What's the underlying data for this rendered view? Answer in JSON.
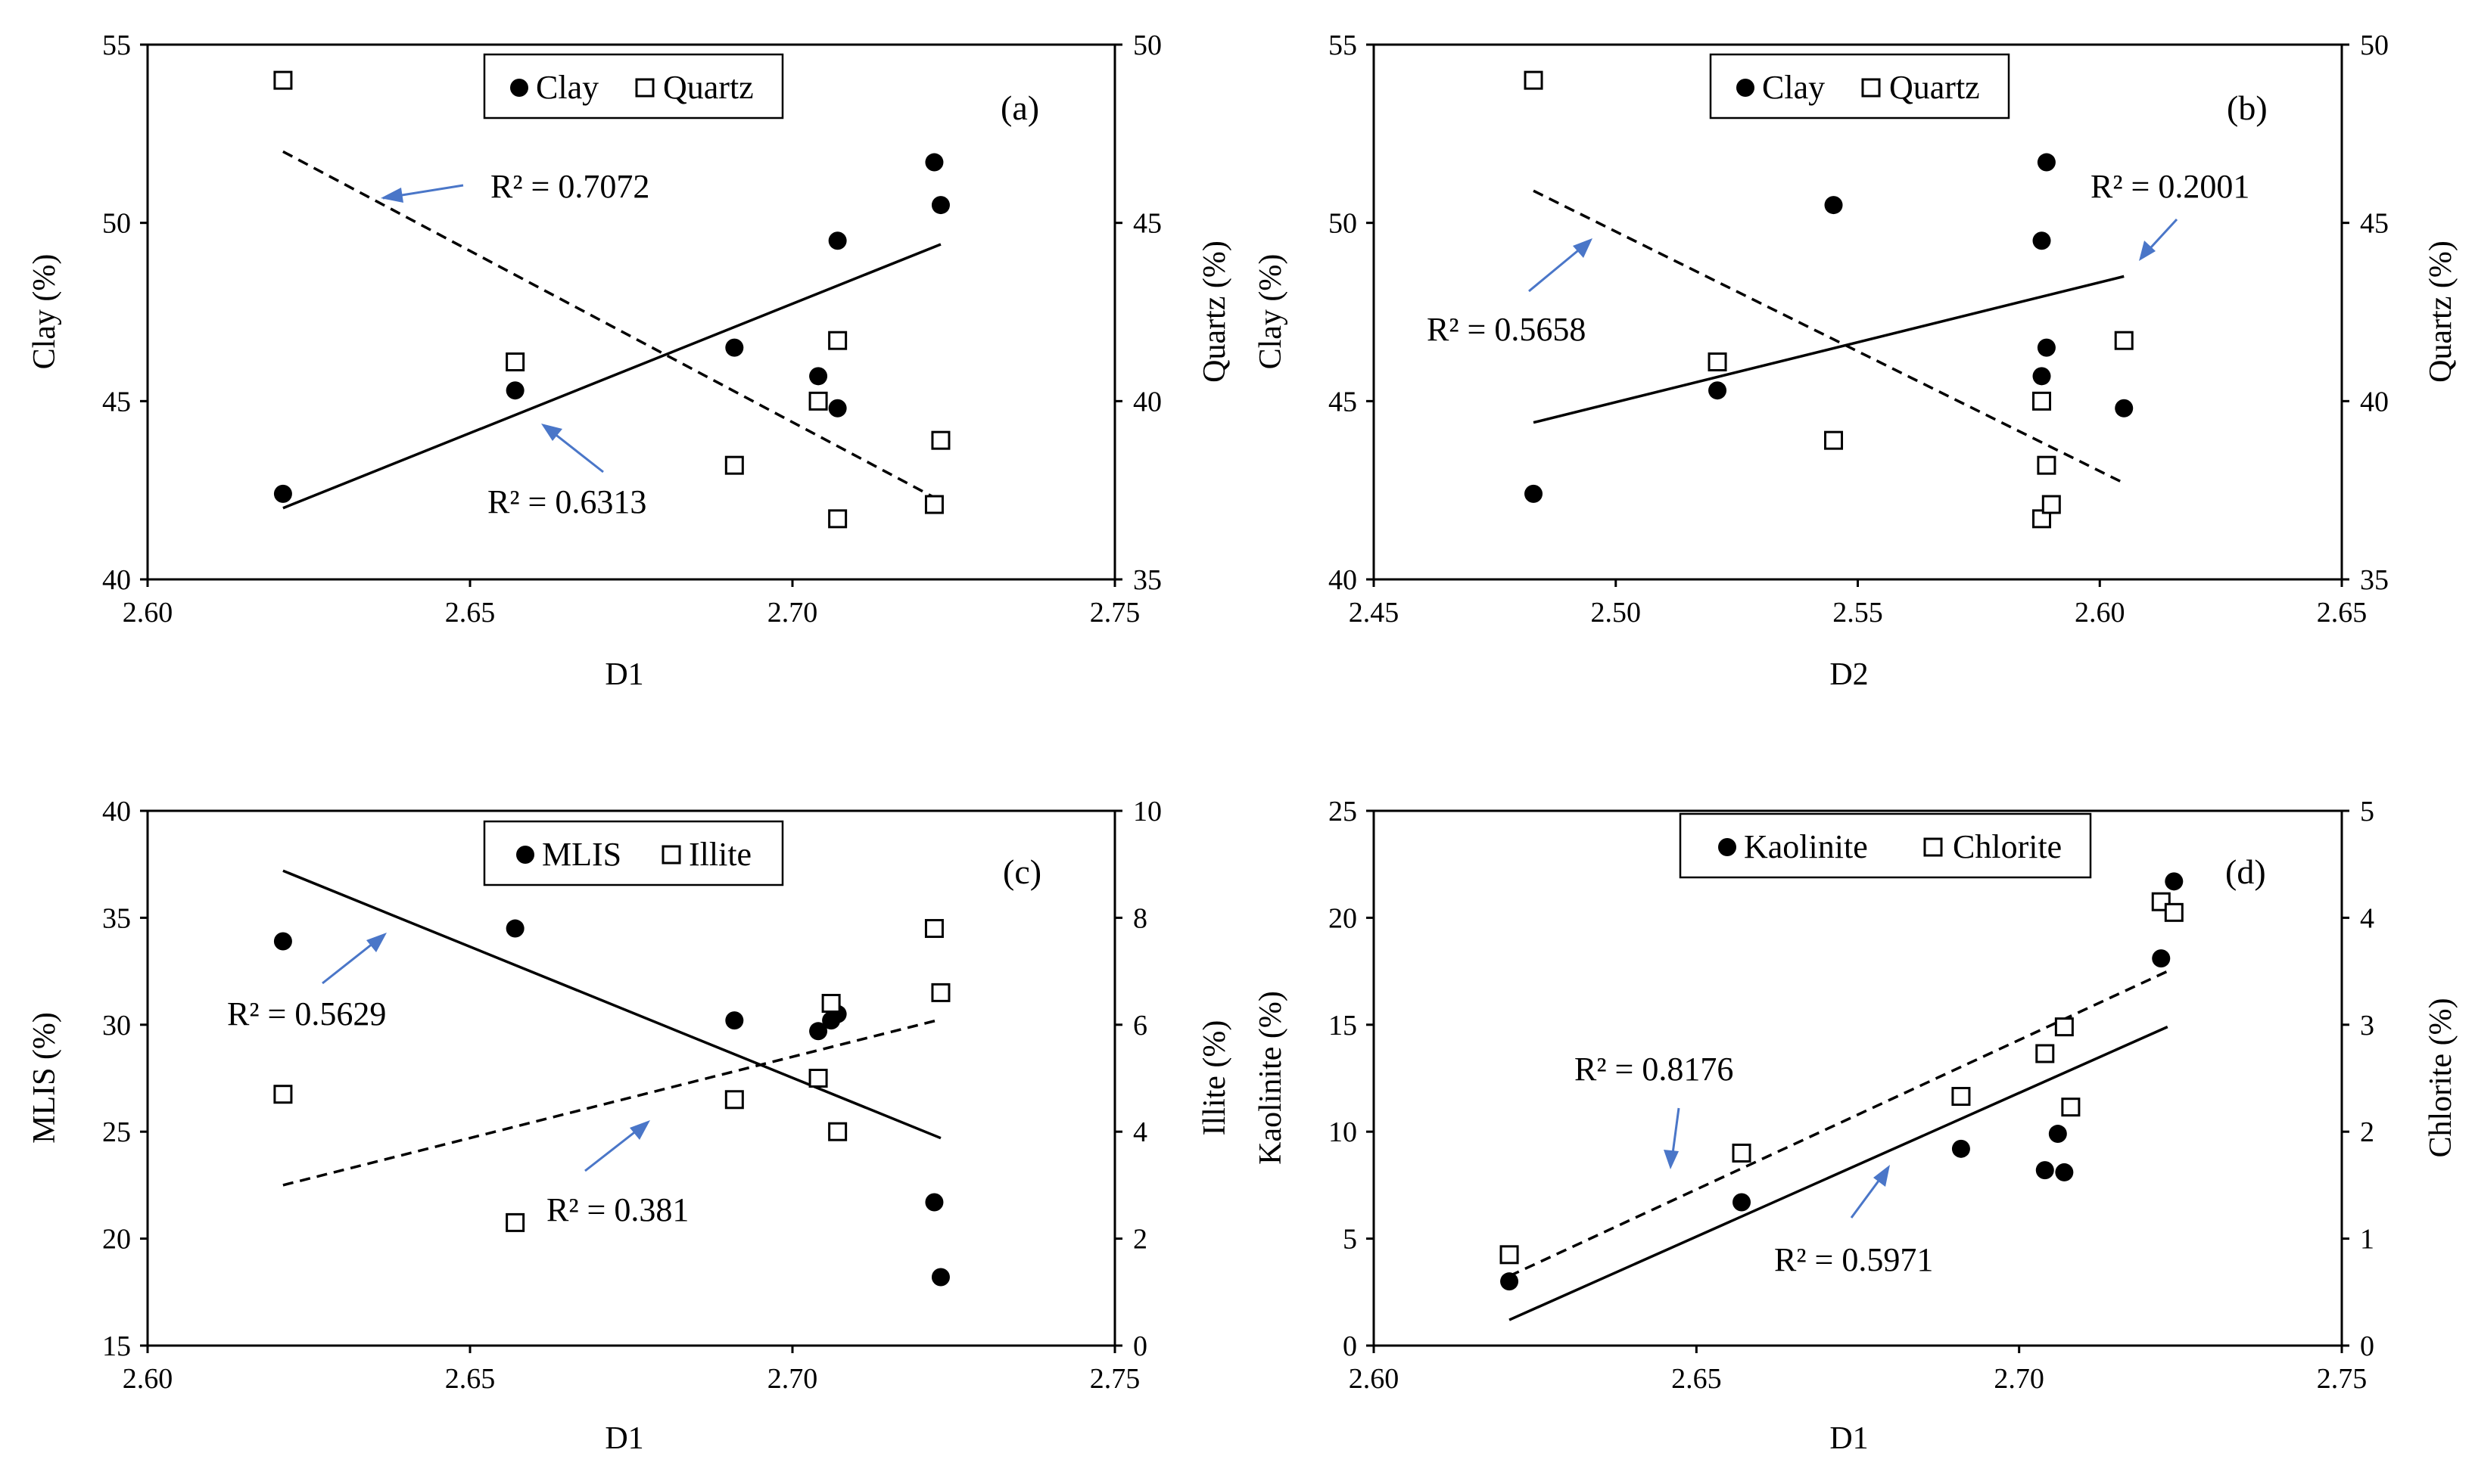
{
  "chart_data": [
    {
      "type": "scatter",
      "panel_label": "(a)",
      "xlabel": "D1",
      "ylabel_left": "Clay (%)",
      "ylabel_right": "Quartz (%)",
      "xlim": [
        2.6,
        2.75
      ],
      "xticks": [
        "2.60",
        "2.65",
        "2.70",
        "2.75"
      ],
      "ylim_left": [
        40,
        55
      ],
      "yticks_left": [
        "40",
        "45",
        "50",
        "55"
      ],
      "ylim_right": [
        35,
        50
      ],
      "yticks_right": [
        "35",
        "40",
        "45",
        "50"
      ],
      "legend": [
        {
          "label": "Clay",
          "marker": "filled-circle"
        },
        {
          "label": "Quartz",
          "marker": "open-square"
        }
      ],
      "series": [
        {
          "name": "Clay",
          "axis": "left",
          "marker": "filled-circle",
          "points": [
            [
              2.621,
              42.4
            ],
            [
              2.657,
              45.3
            ],
            [
              2.691,
              46.5
            ],
            [
              2.704,
              45.7
            ],
            [
              2.707,
              49.5
            ],
            [
              2.707,
              44.8
            ],
            [
              2.722,
              51.7
            ],
            [
              2.723,
              50.5
            ]
          ],
          "trend": {
            "style": "solid",
            "x": [
              2.621,
              2.723
            ],
            "y": [
              42.0,
              49.4
            ]
          }
        },
        {
          "name": "Quartz",
          "axis": "right",
          "marker": "open-square",
          "points": [
            [
              2.621,
              49.0
            ],
            [
              2.657,
              41.1
            ],
            [
              2.691,
              38.2
            ],
            [
              2.704,
              40.0
            ],
            [
              2.707,
              41.7
            ],
            [
              2.707,
              36.7
            ],
            [
              2.722,
              37.1
            ],
            [
              2.723,
              38.9
            ]
          ],
          "trend": {
            "style": "dashed",
            "x": [
              2.621,
              2.723
            ],
            "y": [
              47.0,
              37.2
            ]
          }
        }
      ],
      "annotations": [
        "R² = 0.7072",
        "R² = 0.6313"
      ]
    },
    {
      "type": "scatter",
      "panel_label": "(b)",
      "xlabel": "D2",
      "ylabel_left": "Clay (%)",
      "ylabel_right": "Quartz (%)",
      "xlim": [
        2.45,
        2.65
      ],
      "xticks": [
        "2.45",
        "2.50",
        "2.55",
        "2.60",
        "2.65"
      ],
      "ylim_left": [
        40,
        55
      ],
      "yticks_left": [
        "40",
        "45",
        "50",
        "55"
      ],
      "ylim_right": [
        35,
        50
      ],
      "yticks_right": [
        "35",
        "40",
        "45",
        "50"
      ],
      "legend": [
        {
          "label": "Clay",
          "marker": "filled-circle"
        },
        {
          "label": "Quartz",
          "marker": "open-square"
        }
      ],
      "series": [
        {
          "name": "Clay",
          "axis": "left",
          "marker": "filled-circle",
          "points": [
            [
              2.483,
              42.4
            ],
            [
              2.521,
              45.3
            ],
            [
              2.545,
              50.5
            ],
            [
              2.588,
              49.5
            ],
            [
              2.588,
              45.7
            ],
            [
              2.589,
              51.7
            ],
            [
              2.589,
              46.5
            ],
            [
              2.605,
              44.8
            ]
          ],
          "trend": {
            "style": "solid",
            "x": [
              2.483,
              2.605
            ],
            "y": [
              44.4,
              48.5
            ]
          }
        },
        {
          "name": "Quartz",
          "axis": "right",
          "marker": "open-square",
          "points": [
            [
              2.483,
              49.0
            ],
            [
              2.521,
              41.1
            ],
            [
              2.545,
              38.9
            ],
            [
              2.588,
              40.0
            ],
            [
              2.588,
              36.7
            ],
            [
              2.589,
              38.2
            ],
            [
              2.59,
              37.1
            ],
            [
              2.605,
              41.7
            ]
          ],
          "trend": {
            "style": "dashed",
            "x": [
              2.483,
              2.605
            ],
            "y": [
              45.9,
              37.7
            ]
          }
        }
      ],
      "annotations": [
        "R² = 0.2001",
        "R² = 0.5658"
      ]
    },
    {
      "type": "scatter",
      "panel_label": "(c)",
      "xlabel": "D1",
      "ylabel_left": "MLIS (%)",
      "ylabel_right": "Illite (%)",
      "xlim": [
        2.6,
        2.75
      ],
      "xticks": [
        "2.60",
        "2.65",
        "2.70",
        "2.75"
      ],
      "ylim_left": [
        15,
        40
      ],
      "yticks_left": [
        "15",
        "20",
        "25",
        "30",
        "35",
        "40"
      ],
      "ylim_right": [
        0,
        10
      ],
      "yticks_right": [
        "0",
        "2",
        "4",
        "6",
        "8",
        "10"
      ],
      "legend": [
        {
          "label": "MLIS",
          "marker": "filled-circle"
        },
        {
          "label": "Illite",
          "marker": "open-square"
        }
      ],
      "series": [
        {
          "name": "MLIS",
          "axis": "left",
          "marker": "filled-circle",
          "points": [
            [
              2.621,
              33.9
            ],
            [
              2.657,
              34.5
            ],
            [
              2.691,
              30.2
            ],
            [
              2.704,
              29.7
            ],
            [
              2.706,
              30.2
            ],
            [
              2.707,
              30.5
            ],
            [
              2.722,
              21.7
            ],
            [
              2.723,
              18.2
            ]
          ],
          "trend": {
            "style": "solid",
            "x": [
              2.621,
              2.723
            ],
            "y": [
              37.2,
              24.7
            ]
          }
        },
        {
          "name": "Illite",
          "axis": "right",
          "marker": "open-square",
          "points": [
            [
              2.621,
              4.7
            ],
            [
              2.657,
              2.3
            ],
            [
              2.691,
              4.6
            ],
            [
              2.704,
              5.0
            ],
            [
              2.706,
              6.4
            ],
            [
              2.707,
              4.0
            ],
            [
              2.722,
              7.8
            ],
            [
              2.723,
              6.6
            ]
          ],
          "trend": {
            "style": "dashed",
            "x": [
              2.621,
              2.723
            ],
            "y": [
              3.0,
              6.1
            ]
          }
        }
      ],
      "annotations": [
        "R² = 0.5629",
        "R² = 0.381"
      ]
    },
    {
      "type": "scatter",
      "panel_label": "(d)",
      "xlabel": "D1",
      "ylabel_left": "Kaolinite (%)",
      "ylabel_right": "Chlorite (%)",
      "xlim": [
        2.6,
        2.75
      ],
      "xticks": [
        "2.60",
        "2.65",
        "2.70",
        "2.75"
      ],
      "ylim_left": [
        0,
        25
      ],
      "yticks_left": [
        "0",
        "5",
        "10",
        "15",
        "20",
        "25"
      ],
      "ylim_right": [
        0,
        5
      ],
      "yticks_right": [
        "0",
        "1",
        "2",
        "3",
        "4",
        "5"
      ],
      "legend": [
        {
          "label": "Kaolinite",
          "marker": "filled-circle"
        },
        {
          "label": "Chlorite",
          "marker": "open-square"
        }
      ],
      "series": [
        {
          "name": "Kaolinite",
          "axis": "left",
          "marker": "filled-circle",
          "points": [
            [
              2.621,
              3.0
            ],
            [
              2.657,
              6.7
            ],
            [
              2.691,
              9.2
            ],
            [
              2.704,
              8.2
            ],
            [
              2.706,
              9.9
            ],
            [
              2.707,
              8.1
            ],
            [
              2.722,
              18.1
            ],
            [
              2.724,
              21.7
            ]
          ],
          "trend": {
            "style": "solid",
            "x": [
              2.621,
              2.723
            ],
            "y": [
              1.2,
              14.9
            ]
          }
        },
        {
          "name": "Chlorite",
          "axis": "right",
          "marker": "open-square",
          "points": [
            [
              2.621,
              0.85
            ],
            [
              2.657,
              1.8
            ],
            [
              2.691,
              2.33
            ],
            [
              2.704,
              2.73
            ],
            [
              2.707,
              2.98
            ],
            [
              2.708,
              2.23
            ],
            [
              2.722,
              4.15
            ],
            [
              2.724,
              4.05
            ]
          ],
          "trend": {
            "style": "dashed",
            "x": [
              2.621,
              2.723
            ],
            "y": [
              0.65,
              3.5
            ]
          }
        }
      ],
      "annotations": [
        "R² = 0.8176",
        "R² = 0.5971"
      ]
    }
  ]
}
